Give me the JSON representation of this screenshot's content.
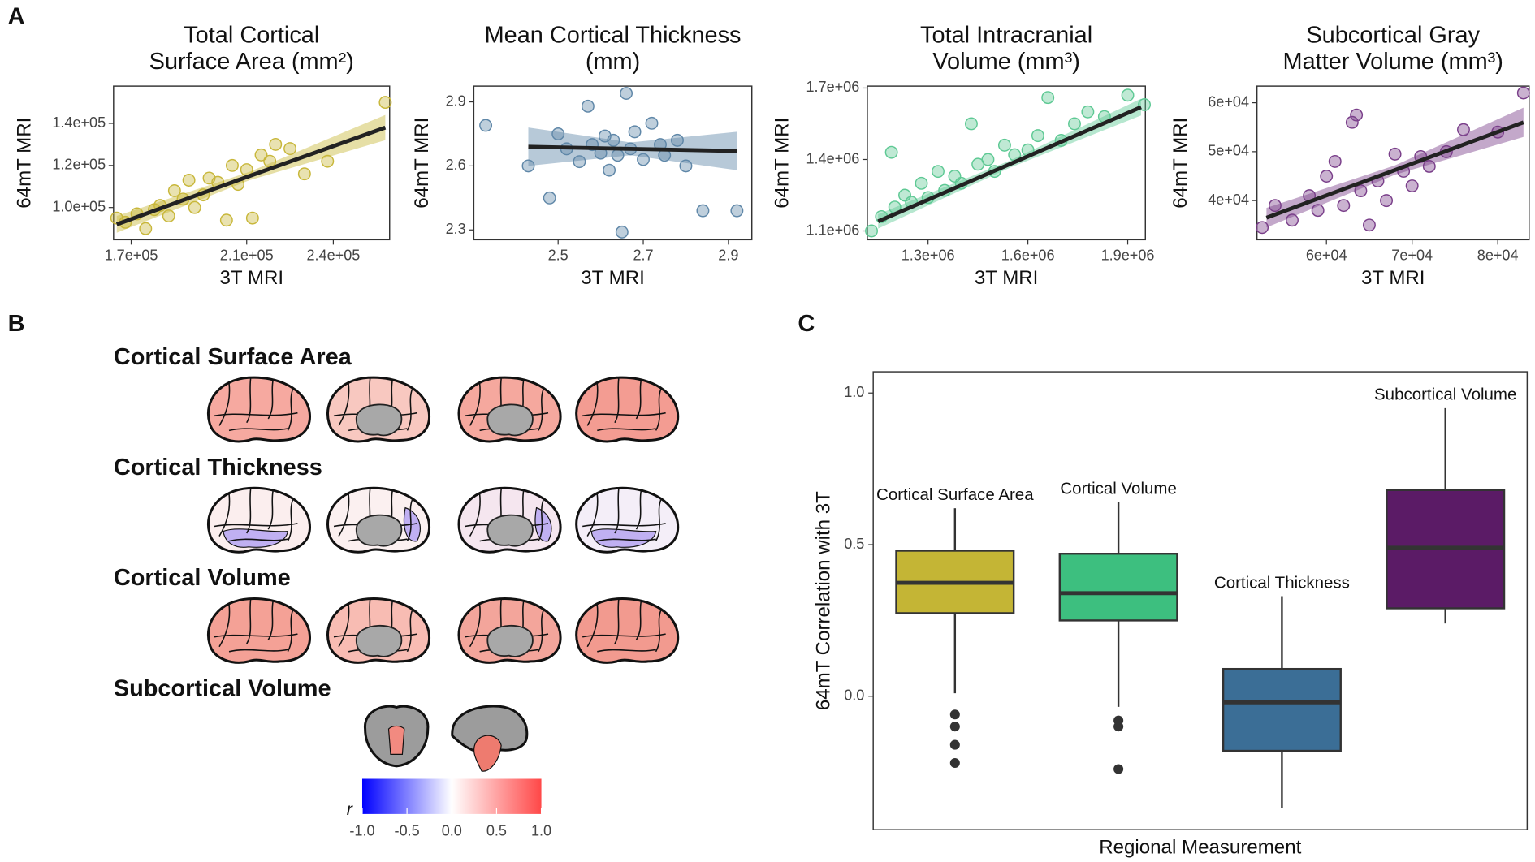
{
  "panels": [
    "A",
    "B",
    "C"
  ],
  "chart_data": [
    {
      "type": "scatter",
      "title": [
        "Total Cortical",
        "Surface Area (mm²)"
      ],
      "xlabel": "3T MRI",
      "ylabel": "64mT MRI",
      "color": "#c8b73a",
      "x": [
        165000,
        168000,
        172000,
        175000,
        178000,
        180000,
        183000,
        185000,
        188000,
        190000,
        192000,
        195000,
        197000,
        200000,
        203000,
        205000,
        207000,
        210000,
        212000,
        215000,
        218000,
        220000,
        225000,
        230000,
        238000,
        258000
      ],
      "y": [
        95000,
        93000,
        97000,
        90000,
        99000,
        101000,
        96000,
        108000,
        104000,
        113000,
        100000,
        106000,
        114000,
        112000,
        94000,
        120000,
        111000,
        118000,
        95000,
        125000,
        122000,
        130000,
        128000,
        116000,
        122000,
        150000
      ],
      "fit": {
        "x": [
          165000,
          211000,
          258000
        ],
        "y": [
          92000,
          115000,
          138000
        ],
        "lower": [
          88000,
          113000,
          132000
        ],
        "upper": [
          96000,
          117000,
          144000
        ]
      },
      "xlim": [
        163900,
        259500
      ],
      "ylim": [
        84700,
        157700
      ],
      "xticks": [
        {
          "value": 170000,
          "label": "1.7e+05"
        },
        {
          "value": 210000,
          "label": "2.1e+05"
        },
        {
          "value": 240000,
          "label": "2.4e+05"
        }
      ],
      "yticks": [
        {
          "value": 100000,
          "label": "1.0e+05"
        },
        {
          "value": 120000,
          "label": "1.2e+05"
        },
        {
          "value": 140000,
          "label": "1.4e+05"
        }
      ]
    },
    {
      "type": "scatter",
      "title": [
        "Mean Cortical Thickness",
        "(mm)"
      ],
      "xlabel": "3T MRI",
      "ylabel": "64mT MRI",
      "color": "#5f87a8",
      "x": [
        2.33,
        2.43,
        2.48,
        2.5,
        2.52,
        2.55,
        2.57,
        2.58,
        2.6,
        2.61,
        2.62,
        2.63,
        2.64,
        2.65,
        2.66,
        2.67,
        2.68,
        2.7,
        2.72,
        2.74,
        2.75,
        2.78,
        2.8,
        2.84,
        2.92
      ],
      "y": [
        2.79,
        2.6,
        2.45,
        2.75,
        2.68,
        2.62,
        2.88,
        2.7,
        2.66,
        2.74,
        2.58,
        2.72,
        2.65,
        2.29,
        2.94,
        2.68,
        2.76,
        2.63,
        2.8,
        2.7,
        2.65,
        2.72,
        2.6,
        2.39,
        2.39
      ],
      "fit": {
        "x": [
          2.43,
          2.67,
          2.92
        ],
        "y": [
          2.69,
          2.68,
          2.67
        ],
        "lower": [
          2.6,
          2.65,
          2.58
        ],
        "upper": [
          2.78,
          2.71,
          2.76
        ]
      },
      "xlim": [
        2.302,
        2.955
      ],
      "ylim": [
        2.254,
        2.974
      ],
      "xticks": [
        2.5,
        2.7,
        2.9
      ],
      "yticks": [
        2.3,
        2.6,
        2.9
      ]
    },
    {
      "type": "scatter",
      "title": [
        "Total Intracranial",
        "Volume (mm³)"
      ],
      "xlabel": "3T MRI",
      "ylabel": "64mT MRI",
      "color": "#5ec994",
      "x": [
        1130000,
        1160000,
        1190000,
        1200000,
        1230000,
        1250000,
        1280000,
        1300000,
        1330000,
        1350000,
        1380000,
        1400000,
        1430000,
        1450000,
        1480000,
        1500000,
        1530000,
        1560000,
        1600000,
        1630000,
        1660000,
        1700000,
        1740000,
        1780000,
        1830000,
        1900000,
        1950000
      ],
      "y": [
        1100000,
        1160000,
        1430000,
        1200000,
        1250000,
        1220000,
        1300000,
        1240000,
        1350000,
        1270000,
        1330000,
        1300000,
        1550000,
        1380000,
        1400000,
        1350000,
        1460000,
        1420000,
        1440000,
        1500000,
        1660000,
        1480000,
        1550000,
        1600000,
        1580000,
        1670000,
        1630000
      ],
      "fit": {
        "x": [
          1150000,
          1545000,
          1940000
        ],
        "y": [
          1140000,
          1380000,
          1620000
        ],
        "lower": [
          1110000,
          1365000,
          1585000
        ],
        "upper": [
          1170000,
          1395000,
          1655000
        ]
      },
      "xlim": [
        1117600,
        1953000
      ],
      "ylim": [
        1063000,
        1708000
      ],
      "xticks": [
        {
          "value": 1300000,
          "label": "1.3e+06"
        },
        {
          "value": 1600000,
          "label": "1.6e+06"
        },
        {
          "value": 1900000,
          "label": "1.9e+06"
        }
      ],
      "yticks": [
        {
          "value": 1100000,
          "label": "1.1e+06"
        },
        {
          "value": 1400000,
          "label": "1.4e+06"
        },
        {
          "value": 1700000,
          "label": "1.7e+06"
        }
      ]
    },
    {
      "type": "scatter",
      "title": [
        "Subcortical Gray",
        "Matter Volume (mm³)"
      ],
      "xlabel": "3T MRI",
      "ylabel": "64mT MRI",
      "color": "#7a3f8a",
      "x": [
        52500,
        54000,
        56000,
        58000,
        59000,
        60000,
        61000,
        62000,
        63000,
        63500,
        64000,
        65000,
        66000,
        67000,
        68000,
        69000,
        70000,
        71000,
        72000,
        74000,
        76000,
        80000,
        83000
      ],
      "y": [
        34500,
        39000,
        36000,
        41000,
        38000,
        45000,
        48000,
        39000,
        56000,
        57500,
        42000,
        35000,
        44000,
        40000,
        49500,
        46000,
        43000,
        49000,
        47000,
        50000,
        54500,
        54000,
        62000
      ],
      "fit": {
        "x": [
          53000,
          68000,
          83000
        ],
        "y": [
          36500,
          46250,
          56000
        ],
        "lower": [
          34500,
          45300,
          53000
        ],
        "upper": [
          38500,
          47200,
          59000
        ]
      },
      "xlim": [
        51890,
        83660
      ],
      "ylim": [
        32000,
        63400
      ],
      "xticks": [
        {
          "value": 60000,
          "label": "6e+04"
        },
        {
          "value": 70000,
          "label": "7e+04"
        },
        {
          "value": 80000,
          "label": "8e+04"
        }
      ],
      "yticks": [
        {
          "value": 40000,
          "label": "4e+04"
        },
        {
          "value": 50000,
          "label": "5e+04"
        },
        {
          "value": 60000,
          "label": "6e+04"
        }
      ]
    },
    {
      "type": "box",
      "xlabel": "Regional Measurement",
      "ylabel": "64mT Correlation with 3T",
      "categories": [
        "Cortical Surface Area",
        "Cortical Volume",
        "Cortical Thickness",
        "Subcortical Volume"
      ],
      "colors": [
        "#c4b535",
        "#3dbf7f",
        "#3b6e96",
        "#5b1b66"
      ],
      "q1": [
        0.274,
        0.25,
        -0.18,
        0.29
      ],
      "median": [
        0.374,
        0.34,
        -0.02,
        0.49
      ],
      "q3": [
        0.48,
        0.47,
        0.09,
        0.68
      ],
      "whisker_low": [
        0.01,
        -0.035,
        -0.37,
        0.24
      ],
      "whisker_high": [
        0.62,
        0.64,
        0.33,
        0.95
      ],
      "outliers": [
        [
          -0.06,
          -0.1,
          -0.16,
          -0.22
        ],
        [
          -0.08,
          -0.1,
          -0.24
        ],
        [],
        []
      ],
      "ylim": [
        -0.44,
        1.07
      ],
      "yticks": [
        {
          "value": 0,
          "label": "0.0"
        },
        {
          "value": 0.5,
          "label": "0.5"
        },
        {
          "value": 1,
          "label": "1.0"
        }
      ]
    }
  ],
  "brain_maps": {
    "labels": [
      "Cortical Surface Area",
      "Cortical Thickness",
      "Cortical Volume",
      "Subcortical Volume"
    ],
    "colors": [
      "#c4b535",
      "#3b6e96",
      "#3dbf7f",
      "#4a1259"
    ],
    "colorbar": {
      "label": "r",
      "lim": [
        -1,
        1
      ],
      "ticks": [
        {
          "value": -1,
          "label": "-1.0"
        },
        {
          "value": -0.5,
          "label": "-0.5"
        },
        {
          "value": 0,
          "label": "0.0"
        },
        {
          "value": 0.5,
          "label": "0.5"
        },
        {
          "value": 1,
          "label": "1.0"
        }
      ]
    }
  }
}
